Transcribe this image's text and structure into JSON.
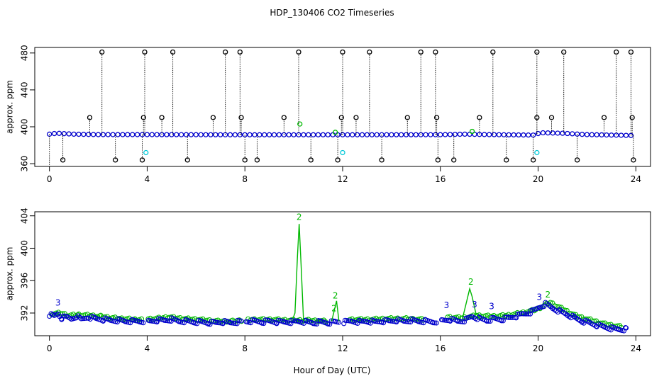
{
  "title": "HDP_130406  CO2 Timeseries",
  "xlabel": "Hour of Day (UTC)",
  "colors": {
    "primary": "#0000cc",
    "secondary": "#00b800",
    "cyan": "#00c8d8",
    "black": "#000000"
  },
  "chart_data": [
    {
      "type": "scatter",
      "panel": "top",
      "ylabel": "approx. ppm",
      "xlim": [
        -0.6,
        24.6
      ],
      "ylim": [
        357,
        486
      ],
      "xticks": [
        0,
        4,
        8,
        12,
        16,
        20,
        24
      ],
      "yticks": [
        360,
        400,
        440,
        480
      ],
      "baseline": [
        [
          0,
          392
        ],
        [
          0.3,
          393
        ],
        [
          1,
          392
        ],
        [
          2,
          391.5
        ],
        [
          4,
          391.5
        ],
        [
          8,
          391.3
        ],
        [
          12,
          391.3
        ],
        [
          16,
          391.4
        ],
        [
          17,
          392
        ],
        [
          18,
          391.5
        ],
        [
          19.8,
          391
        ],
        [
          20.1,
          393.5
        ],
        [
          21,
          393
        ],
        [
          22,
          391.5
        ],
        [
          24,
          390.5
        ]
      ],
      "spikes_high": [
        2.15,
        3.9,
        5.05,
        7.2,
        7.8,
        10.2,
        12.0,
        13.1,
        15.2,
        15.8,
        18.15,
        19.95,
        21.05,
        23.2,
        23.8
      ],
      "spikes_low": [
        0.55,
        2.7,
        3.8,
        5.65,
        8.0,
        8.5,
        10.7,
        11.8,
        13.6,
        15.9,
        16.55,
        18.7,
        19.8,
        21.6,
        23.9
      ],
      "mid_high": [
        1.65,
        3.85,
        4.6,
        6.7,
        7.85,
        9.6,
        11.95,
        12.55,
        14.65,
        15.85,
        17.6,
        19.95,
        20.55,
        22.7,
        23.85
      ],
      "green_points": [
        [
          10.25,
          403
        ],
        [
          11.7,
          394
        ],
        [
          17.3,
          395
        ]
      ],
      "cyan_points": [
        [
          3.95,
          372
        ],
        [
          12.0,
          372
        ],
        [
          19.95,
          372
        ]
      ],
      "level_high": 481,
      "level_low": 364,
      "level_mid": 410
    },
    {
      "type": "scatter",
      "panel": "bottom",
      "ylabel": "approx. ppm",
      "xlim": [
        -0.6,
        24.6
      ],
      "ylim": [
        389.2,
        404.5
      ],
      "xticks": [
        0,
        4,
        8,
        12,
        16,
        20,
        24
      ],
      "yticks": [
        392,
        396,
        400,
        404
      ],
      "series": [
        {
          "color": "#0000cc",
          "marker": "circle",
          "points": [
            [
              0,
              391.8
            ],
            [
              0.2,
              391.6
            ],
            [
              0.35,
              391.9
            ],
            [
              0.5,
              391.4
            ],
            [
              0.7,
              391.5
            ],
            [
              0.9,
              391.3
            ],
            [
              1.1,
              391.6
            ],
            [
              1.3,
              391.2
            ],
            [
              1.6,
              391.5
            ],
            [
              1.9,
              391.3
            ],
            [
              2.2,
              391.2
            ],
            [
              2.5,
              391.1
            ],
            [
              2.8,
              391.1
            ],
            [
              3.1,
              391.0
            ],
            [
              3.4,
              391.0
            ],
            [
              3.7,
              391.0
            ],
            [
              4.1,
              391.0
            ],
            [
              4.4,
              391.1
            ],
            [
              4.7,
              391.1
            ],
            [
              5.0,
              391.2
            ],
            [
              5.3,
              391.0
            ],
            [
              5.6,
              391.0
            ],
            [
              5.9,
              390.9
            ],
            [
              6.2,
              390.9
            ],
            [
              6.5,
              390.8
            ],
            [
              6.8,
              390.8
            ],
            [
              7.1,
              390.9
            ],
            [
              7.4,
              390.8
            ],
            [
              7.7,
              390.9
            ],
            [
              8.1,
              391.0
            ],
            [
              8.4,
              391.0
            ],
            [
              8.7,
              390.9
            ],
            [
              9.0,
              391.0
            ],
            [
              9.3,
              390.9
            ],
            [
              9.6,
              390.9
            ],
            [
              9.9,
              390.9
            ],
            [
              10.2,
              391.0
            ],
            [
              10.5,
              390.9
            ],
            [
              10.8,
              390.8
            ],
            [
              11.1,
              390.9
            ],
            [
              11.4,
              390.8
            ],
            [
              11.7,
              390.9
            ],
            [
              12.1,
              390.9
            ],
            [
              12.4,
              391.0
            ],
            [
              12.7,
              390.9
            ],
            [
              13.0,
              391.0
            ],
            [
              13.3,
              390.9
            ],
            [
              13.6,
              391.0
            ],
            [
              13.9,
              391.0
            ],
            [
              14.2,
              391.1
            ],
            [
              14.5,
              391.0
            ],
            [
              14.8,
              391.1
            ],
            [
              15.1,
              391.0
            ],
            [
              15.4,
              391.0
            ],
            [
              15.7,
              390.9
            ],
            [
              16.1,
              391.1
            ],
            [
              16.4,
              391.2
            ],
            [
              16.7,
              391.0
            ],
            [
              17.0,
              391.1
            ],
            [
              17.3,
              391.6
            ],
            [
              17.6,
              391.3
            ],
            [
              17.9,
              391.1
            ],
            [
              18.2,
              391.3
            ],
            [
              18.5,
              391.2
            ],
            [
              18.8,
              391.4
            ],
            [
              19.1,
              391.6
            ],
            [
              19.4,
              391.9
            ],
            [
              19.7,
              392.1
            ],
            [
              20.1,
              392.8
            ],
            [
              20.3,
              393.1
            ],
            [
              20.6,
              392.6
            ],
            [
              20.9,
              392.2
            ],
            [
              21.2,
              391.8
            ],
            [
              21.5,
              391.4
            ],
            [
              21.8,
              391.0
            ],
            [
              22.1,
              390.8
            ],
            [
              22.4,
              390.5
            ],
            [
              22.7,
              390.3
            ],
            [
              23.0,
              390.1
            ],
            [
              23.3,
              390.0
            ],
            [
              23.6,
              390.0
            ]
          ]
        },
        {
          "color": "#00b800",
          "marker": "circle",
          "points": [
            [
              0.1,
              391.9
            ],
            [
              0.45,
              392.0
            ],
            [
              0.8,
              391.7
            ],
            [
              1.2,
              391.8
            ],
            [
              1.7,
              391.7
            ],
            [
              2.1,
              391.6
            ],
            [
              2.6,
              391.4
            ],
            [
              3.0,
              391.3
            ],
            [
              3.5,
              391.2
            ],
            [
              4.3,
              391.3
            ],
            [
              4.9,
              391.5
            ],
            [
              5.5,
              391.3
            ],
            [
              6.1,
              391.2
            ],
            [
              6.9,
              391.0
            ],
            [
              7.5,
              391.0
            ],
            [
              8.3,
              391.2
            ],
            [
              9.1,
              391.2
            ],
            [
              9.8,
              391.1
            ],
            [
              10.6,
              391.1
            ],
            [
              11.3,
              391.0
            ],
            [
              12.3,
              391.2
            ],
            [
              13.1,
              391.2
            ],
            [
              13.8,
              391.3
            ],
            [
              14.6,
              391.3
            ],
            [
              15.3,
              391.2
            ],
            [
              16.3,
              391.5
            ],
            [
              16.9,
              391.4
            ],
            [
              17.5,
              391.7
            ],
            [
              18.1,
              391.6
            ],
            [
              18.7,
              391.7
            ],
            [
              19.3,
              392.0
            ],
            [
              19.9,
              392.4
            ],
            [
              20.5,
              393.3
            ],
            [
              21.0,
              392.5
            ],
            [
              21.6,
              391.6
            ],
            [
              22.2,
              391.1
            ],
            [
              22.8,
              390.6
            ],
            [
              23.4,
              390.3
            ]
          ]
        },
        {
          "color": "#00b800",
          "marker": "line",
          "points": [
            [
              9.95,
              391.2
            ],
            [
              10.05,
              392.0
            ],
            [
              10.15,
              399.0
            ],
            [
              10.22,
              403.0
            ],
            [
              10.3,
              398.0
            ],
            [
              10.4,
              391.0
            ],
            [
              11.55,
              391.0
            ],
            [
              11.65,
              392.2
            ],
            [
              11.75,
              393.5
            ],
            [
              11.85,
              391.0
            ],
            [
              16.9,
              391.3
            ],
            [
              17.0,
              392.5
            ],
            [
              17.2,
              395.0
            ],
            [
              17.3,
              394.0
            ],
            [
              17.45,
              392.0
            ],
            [
              17.6,
              391.3
            ]
          ]
        }
      ],
      "labels": [
        {
          "text": "3",
          "x": 0.35,
          "y": 392.9,
          "color": "#0000cc"
        },
        {
          "text": "2",
          "x": 10.22,
          "y": 403.5,
          "color": "#00b800"
        },
        {
          "text": "2",
          "x": 11.7,
          "y": 393.8,
          "color": "#00b800"
        },
        {
          "text": "2",
          "x": 11.65,
          "y": 392.2,
          "color": "#00b800"
        },
        {
          "text": "3",
          "x": 16.25,
          "y": 392.6,
          "color": "#0000cc"
        },
        {
          "text": "2",
          "x": 17.25,
          "y": 395.5,
          "color": "#00b800"
        },
        {
          "text": "3",
          "x": 17.4,
          "y": 392.7,
          "color": "#0000cc"
        },
        {
          "text": "3",
          "x": 18.1,
          "y": 392.5,
          "color": "#0000cc"
        },
        {
          "text": "3",
          "x": 20.05,
          "y": 393.6,
          "color": "#0000cc"
        },
        {
          "text": "2",
          "x": 20.4,
          "y": 393.9,
          "color": "#00b800"
        }
      ]
    }
  ]
}
